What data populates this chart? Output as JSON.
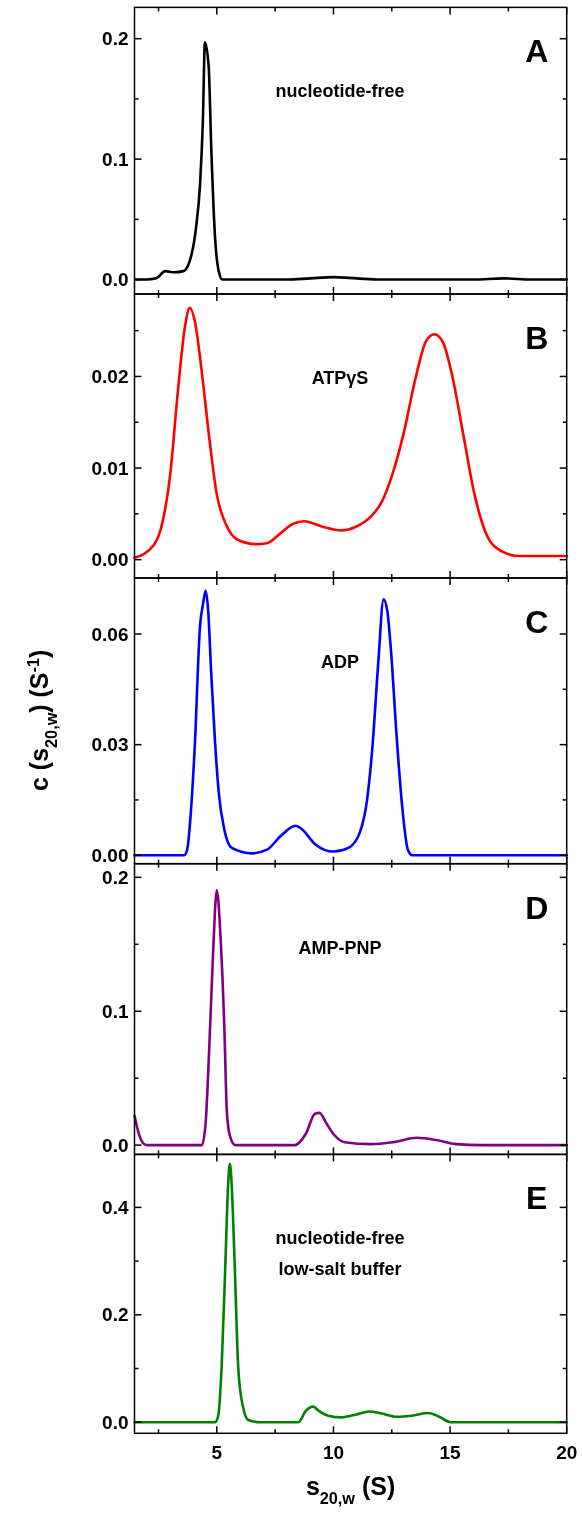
{
  "chart_data": [
    {
      "type": "line",
      "xlim": [
        1.47,
        20
      ],
      "xticks": [
        {
          "value": 2.5,
          "label": null
        },
        5,
        {
          "value": 7.5,
          "label": null
        },
        10,
        {
          "value": 12.5,
          "label": null
        },
        15,
        {
          "value": 17.5,
          "label": null
        },
        20
      ],
      "ylim": [
        -0.012,
        0.226
      ],
      "yticks": [
        {
          "value": 0,
          "label": "0.0"
        },
        {
          "value": 0.05,
          "label": null
        },
        0.1,
        {
          "value": 0.15,
          "label": null
        },
        0.2
      ],
      "tick_labels": "y",
      "annotations": [
        "A",
        "nucleotide-free"
      ],
      "series": [
        {
          "color": "#000000",
          "x": [
            1.5,
            2.0,
            2.4,
            2.79,
            3.17,
            3.57,
            3.93,
            4.12,
            4.28,
            4.4,
            4.49,
            4.65,
            4.76,
            4.92,
            5.08,
            5.24,
            8,
            9,
            10,
            11,
            12,
            16,
            17.3,
            18.5,
            20
          ],
          "values": [
            0,
            0,
            0.001,
            0.007,
            0.006,
            0.007,
            0.022,
            0.045,
            0.079,
            0.131,
            0.197,
            0.177,
            0.11,
            0.036,
            0.007,
            0,
            0,
            0.001,
            0.002,
            0.001,
            0,
            0,
            0.001,
            0,
            0
          ]
        }
      ]
    },
    {
      "type": "line",
      "xlim": [
        1.47,
        20
      ],
      "xticks": [
        {
          "value": 2.5,
          "label": null
        },
        5,
        {
          "value": 7.5,
          "label": null
        },
        10,
        {
          "value": 12.5,
          "label": null
        },
        15,
        {
          "value": 17.5,
          "label": null
        },
        20
      ],
      "ylim": [
        -0.002,
        0.029
      ],
      "yticks": [
        {
          "value": 0,
          "label": "0.00"
        },
        {
          "value": 0.005,
          "label": null
        },
        {
          "value": 0.01,
          "label": "0.01"
        },
        {
          "value": 0.015,
          "label": null
        },
        {
          "value": 0.02,
          "label": "0.02"
        },
        {
          "value": 0.025,
          "label": null
        }
      ],
      "tick_labels": "y",
      "annotations": [
        "B",
        "ATPγS"
      ],
      "series": [
        {
          "color": "#ff0000",
          "x": [
            1.47,
            2.3,
            2.69,
            3.01,
            3.33,
            3.65,
            3.84,
            4.05,
            4.36,
            4.68,
            5.0,
            5.4,
            5.87,
            6.67,
            7.15,
            7.78,
            8.26,
            8.74,
            9.53,
            10.33,
            10.96,
            11.6,
            12.07,
            12.55,
            13.03,
            13.5,
            13.98,
            14.33,
            14.7,
            15.1,
            15.57,
            16.05,
            16.52,
            17.16,
            17.96,
            20
          ],
          "values": [
            0.0002,
            0.0016,
            0.0043,
            0.0095,
            0.0184,
            0.0257,
            0.0275,
            0.0261,
            0.0204,
            0.0132,
            0.0071,
            0.0038,
            0.0022,
            0.0017,
            0.0018,
            0.003,
            0.0039,
            0.0042,
            0.0036,
            0.0032,
            0.0036,
            0.0047,
            0.0063,
            0.0095,
            0.014,
            0.0196,
            0.0239,
            0.0246,
            0.0237,
            0.02,
            0.0136,
            0.0071,
            0.003,
            0.001,
            0.0004,
            0.0004
          ]
        }
      ]
    },
    {
      "type": "line",
      "xlim": [
        1.47,
        20
      ],
      "xticks": [
        {
          "value": 2.5,
          "label": null
        },
        5,
        {
          "value": 7.5,
          "label": null
        },
        10,
        {
          "value": 12.5,
          "label": null
        },
        15,
        {
          "value": 17.5,
          "label": null
        },
        20
      ],
      "ylim": [
        -0.0023,
        0.0752
      ],
      "yticks": [
        {
          "value": 0,
          "label": "0.00"
        },
        {
          "value": 0.015,
          "label": null
        },
        {
          "value": 0.03,
          "label": "0.03"
        },
        {
          "value": 0.045,
          "label": null
        },
        {
          "value": 0.06,
          "label": "0.06"
        }
      ],
      "tick_labels": "y",
      "ylabel": "c (s$_{20,w}$) (S$^{-1}$)",
      "annotations": [
        "C",
        "ADP"
      ],
      "series": [
        {
          "color": "#0000ff",
          "x": [
            1.47,
            3.6,
            3.73,
            3.89,
            4.05,
            4.28,
            4.41,
            4.52,
            4.63,
            4.76,
            4.92,
            5.08,
            5.32,
            5.64,
            6.51,
            7.15,
            7.78,
            8.37,
            8.66,
            9.21,
            10.0,
            10.64,
            11.12,
            11.44,
            11.68,
            11.92,
            12.15,
            12.31,
            12.47,
            12.71,
            12.95,
            13.19,
            13.38,
            20
          ],
          "values": [
            0,
            0,
            0.0015,
            0.012,
            0.029,
            0.0622,
            0.0682,
            0.0717,
            0.0662,
            0.0492,
            0.0311,
            0.0171,
            0.007,
            0.002,
            0.0005,
            0.0015,
            0.0055,
            0.008,
            0.007,
            0.003,
            0.001,
            0.002,
            0.006,
            0.015,
            0.0301,
            0.0522,
            0.0694,
            0.0662,
            0.0552,
            0.0321,
            0.013,
            0.0015,
            0,
            0
          ]
        }
      ]
    },
    {
      "type": "line",
      "xlim": [
        1.47,
        20
      ],
      "xticks": [
        {
          "value": 2.5,
          "label": null
        },
        5,
        {
          "value": 7.5,
          "label": null
        },
        10,
        {
          "value": 12.5,
          "label": null
        },
        15,
        {
          "value": 17.5,
          "label": null
        },
        20
      ],
      "ylim": [
        -0.0069,
        0.2102
      ],
      "yticks": [
        {
          "value": 0,
          "label": "0.0"
        },
        {
          "value": 0.05,
          "label": null
        },
        0.1,
        {
          "value": 0.15,
          "label": null
        },
        0.2
      ],
      "tick_labels": "y",
      "annotations": [
        "D",
        "AMP-PNP"
      ],
      "series": [
        {
          "color": "#800080",
          "x": [
            1.47,
            1.66,
            1.9,
            2.06,
            4.36,
            4.52,
            4.68,
            4.84,
            5.0,
            5.16,
            5.32,
            5.43,
            5.56,
            5.79,
            8.34,
            8.81,
            9.21,
            9.4,
            9.69,
            10.0,
            10.48,
            11.6,
            12.55,
            13.58,
            14.46,
            15.25,
            16.37,
            20
          ],
          "values": [
            0.022,
            0.0083,
            0.0006,
            0,
            0,
            0.0166,
            0.0748,
            0.144,
            0.1906,
            0.155,
            0.0886,
            0.0249,
            0.0069,
            0,
            0,
            0.0083,
            0.0235,
            0.0241,
            0.0166,
            0.0083,
            0.0022,
            0.0008,
            0.0022,
            0.0055,
            0.0036,
            0.0008,
            0,
            0
          ]
        }
      ]
    },
    {
      "type": "line",
      "xlim": [
        1.47,
        20
      ],
      "xticks": [
        {
          "value": 2.5,
          "label": null
        },
        5,
        {
          "value": 7.5,
          "label": null
        },
        10,
        {
          "value": 12.5,
          "label": null
        },
        15,
        {
          "value": 17.5,
          "label": null
        },
        20
      ],
      "ylim": [
        -0.0207,
        0.4987
      ],
      "yticks": [
        {
          "value": 0,
          "label": "0.0"
        },
        {
          "value": 0.1,
          "label": null
        },
        0.2,
        {
          "value": 0.3,
          "label": null
        },
        0.4
      ],
      "xlabel": "s$_{20,w}$ (S)",
      "annotations": [
        "E",
        "nucleotide-free\nlow-salt buffer"
      ],
      "series": [
        {
          "color": "#008000",
          "x": [
            1.47,
            4.92,
            5.05,
            5.21,
            5.37,
            5.48,
            5.56,
            5.64,
            5.76,
            5.92,
            6.11,
            6.35,
            6.83,
            8.5,
            8.81,
            9.13,
            9.37,
            9.77,
            10.33,
            10.96,
            11.52,
            12.07,
            12.71,
            13.35,
            14.06,
            14.54,
            15.02,
            20
          ],
          "values": [
            0,
            0,
            0.01,
            0.107,
            0.301,
            0.439,
            0.481,
            0.439,
            0.301,
            0.1,
            0.031,
            0.004,
            0,
            0,
            0.021,
            0.029,
            0.021,
            0.012,
            0.009,
            0.014,
            0.02,
            0.016,
            0.01,
            0.012,
            0.017,
            0.01,
            0,
            0
          ]
        }
      ]
    }
  ]
}
